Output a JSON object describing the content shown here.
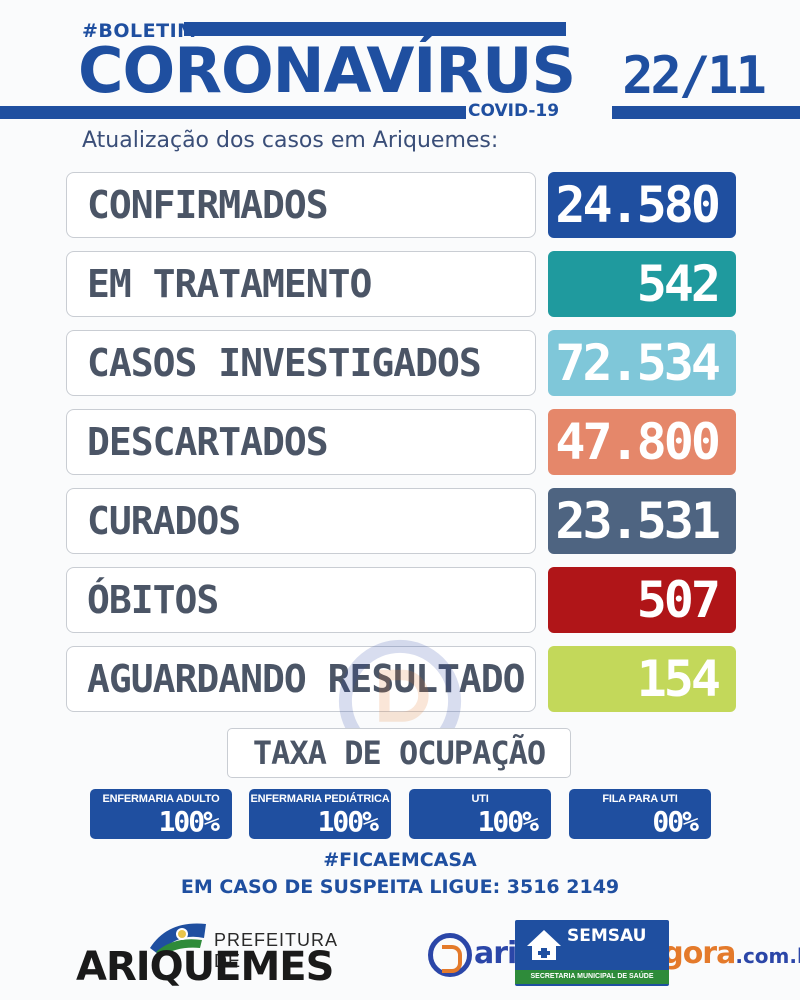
{
  "header": {
    "tag": "#BOLETIM",
    "title": "CORONAVÍRUS",
    "subtitle": "COVID-19",
    "date": "22/11",
    "update_text": "Atualização dos casos em Ariquemes:"
  },
  "stats": [
    {
      "label": "CONFIRMADOS",
      "value": "24.580",
      "color": "#1f4fa0"
    },
    {
      "label": "EM TRATAMENTO",
      "value": "542",
      "color": "#1f9a9e"
    },
    {
      "label": "CASOS INVESTIGADOS",
      "value": "72.534",
      "color": "#7fc7d9"
    },
    {
      "label": "DESCARTADOS",
      "value": "47.800",
      "color": "#e5876a"
    },
    {
      "label": "CURADOS",
      "value": "23.531",
      "color": "#4e6481"
    },
    {
      "label": "ÓBITOS",
      "value": "507",
      "color": "#b01518"
    },
    {
      "label": "AGUARDANDO RESULTADO",
      "value": "154",
      "color": "#c3d85a"
    }
  ],
  "occupancy": {
    "title": "TAXA DE OCUPAÇÃO",
    "items": [
      {
        "label": "ENFERMARIA ADULTO",
        "value": "100%"
      },
      {
        "label": "ENFERMARIA PEDIÁTRICA",
        "value": "100%"
      },
      {
        "label": "UTI",
        "value": "100%"
      },
      {
        "label": "FILA PARA UTI",
        "value": "00%"
      }
    ]
  },
  "footer": {
    "hashtag": "#FICAEMCASA",
    "phone_line": "EM CASO DE SUSPEITA LIGUE: 3516 2149"
  },
  "logos": {
    "prefeitura_top": "PREFEITURA DE",
    "prefeitura_name": "ARIQUEMES",
    "semsau_name": "SEMSAU",
    "semsau_sub": "SECRETARIA MUNICIPAL DE SAÚDE",
    "agora_part1": "ariquemes",
    "agora_part2": "agora",
    "agora_domain": ".com.br"
  }
}
